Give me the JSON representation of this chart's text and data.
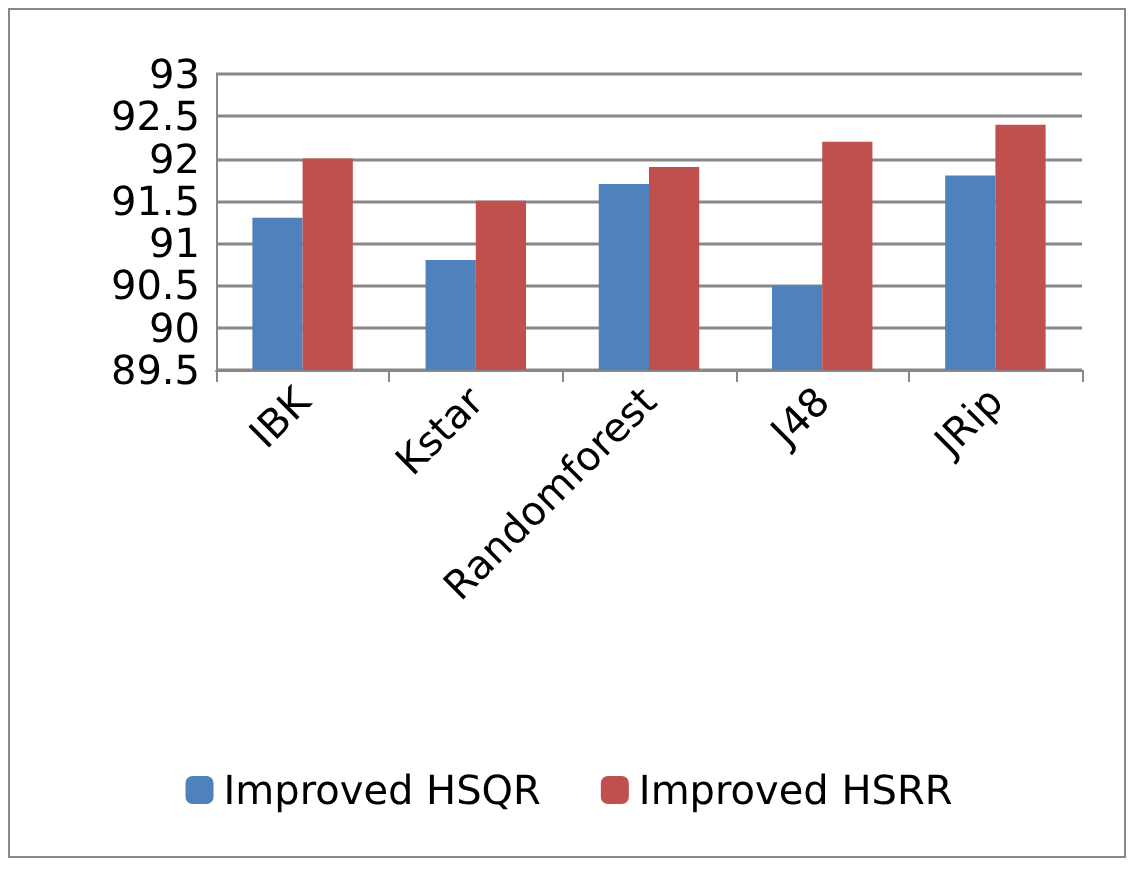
{
  "chart_data": {
    "type": "bar",
    "categories": [
      "IBK",
      "Kstar",
      "Randomforest",
      "J48",
      "JRip"
    ],
    "series": [
      {
        "name": "Improved HSQR",
        "color": "#4f81bd",
        "values": [
          91.3,
          90.8,
          91.7,
          90.5,
          91.8
        ]
      },
      {
        "name": "Improved HSRR",
        "color": "#c0504d",
        "values": [
          92,
          91.5,
          91.9,
          92.2,
          92.4
        ]
      }
    ],
    "ylim": [
      89.5,
      93
    ],
    "yticks": [
      89.5,
      90,
      90.5,
      91,
      91.5,
      92,
      92.5,
      93
    ],
    "grid": "y",
    "legend": "bottom"
  }
}
